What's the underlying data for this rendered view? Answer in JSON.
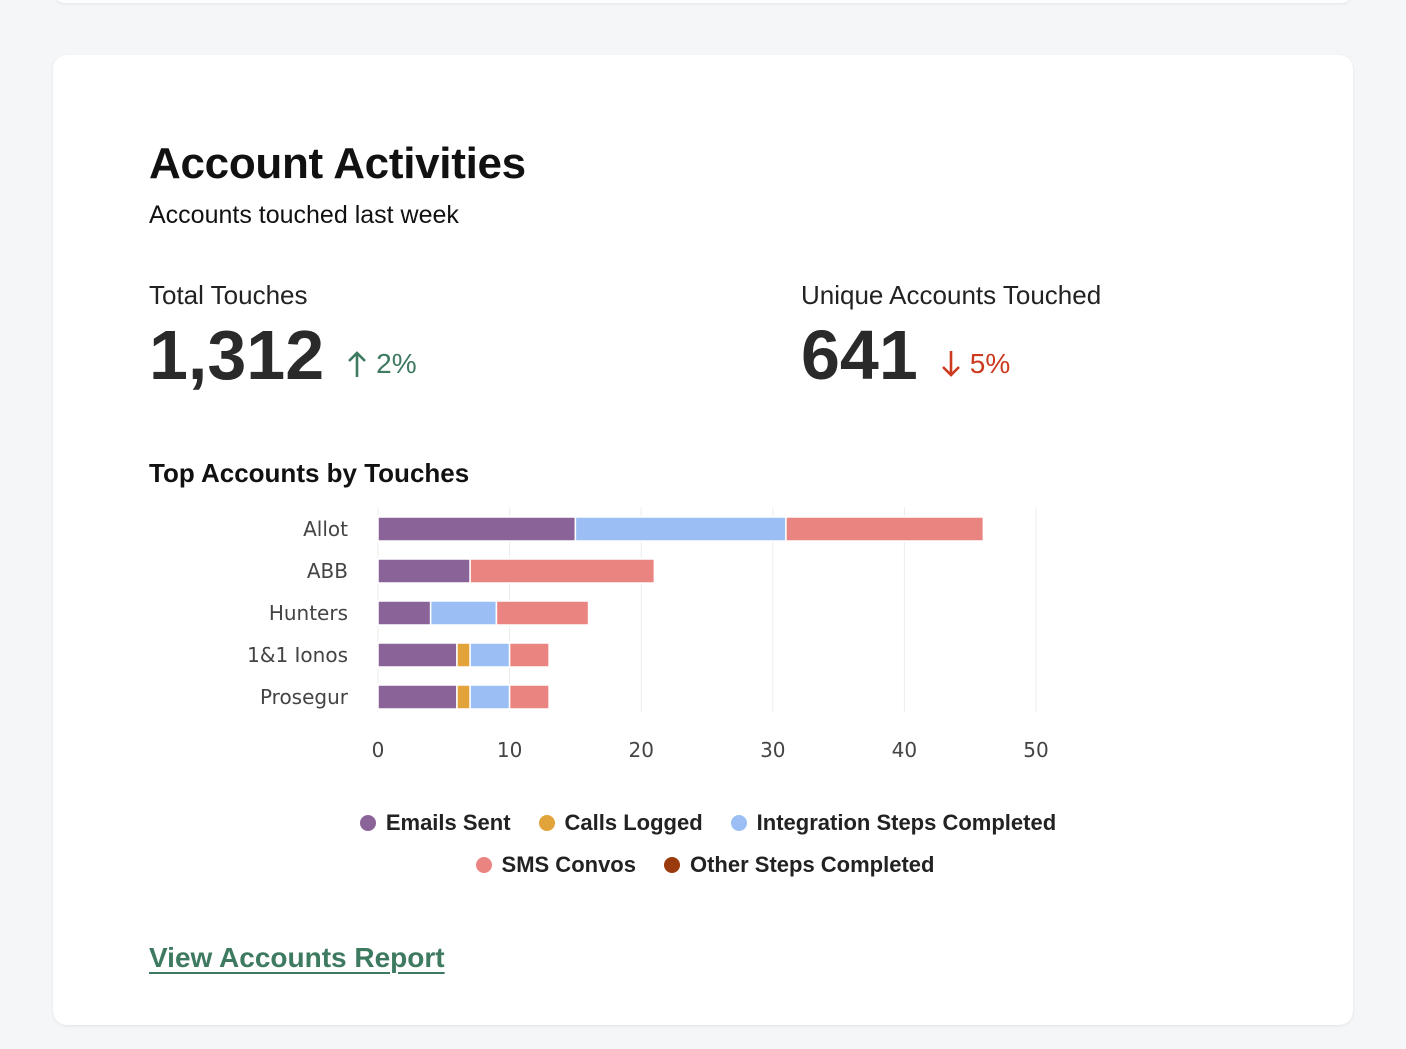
{
  "card": {
    "title": "Account Activities",
    "subtitle": "Accounts touched last week"
  },
  "metrics": {
    "total": {
      "label": "Total Touches",
      "value": "1,312",
      "change": "2%",
      "direction": "up",
      "icon": "arrow-up-icon"
    },
    "unique": {
      "label": "Unique Accounts Touched",
      "value": "641",
      "change": "5%",
      "direction": "down",
      "icon": "arrow-down-icon"
    }
  },
  "colors": {
    "up": "#3d7a60",
    "down": "#cc3a1f",
    "emails": "#8a6499",
    "calls": "#e1a33a",
    "integration": "#9bbff5",
    "sms": "#ea8480",
    "other": "#9b3a0c",
    "link": "#3d7a60"
  },
  "chart_data": {
    "type": "bar",
    "orientation": "horizontal",
    "stacked": true,
    "title": "Top Accounts by Touches",
    "xlabel": "",
    "ylabel": "",
    "categories": [
      "Allot",
      "ABB",
      "Hunters",
      "1&1 Ionos",
      "Prosegur"
    ],
    "xlim": [
      0,
      50
    ],
    "xticks": [
      0,
      10,
      20,
      30,
      40,
      50
    ],
    "grid": "vertical",
    "legend_position": "bottom",
    "series": [
      {
        "name": "Emails Sent",
        "color": "#8a6499",
        "values": [
          15,
          7,
          4,
          6,
          6
        ]
      },
      {
        "name": "Calls Logged",
        "color": "#e1a33a",
        "values": [
          0,
          0,
          0,
          1,
          1
        ]
      },
      {
        "name": "Integration Steps Completed",
        "color": "#9bbff5",
        "values": [
          16,
          0,
          5,
          3,
          3
        ]
      },
      {
        "name": "SMS Convos",
        "color": "#ea8480",
        "values": [
          15,
          14,
          7,
          3,
          3
        ]
      },
      {
        "name": "Other Steps Completed",
        "color": "#9b3a0c",
        "values": [
          0,
          0,
          0,
          0,
          0
        ]
      }
    ]
  },
  "footer": {
    "link_label": "View Accounts Report"
  }
}
